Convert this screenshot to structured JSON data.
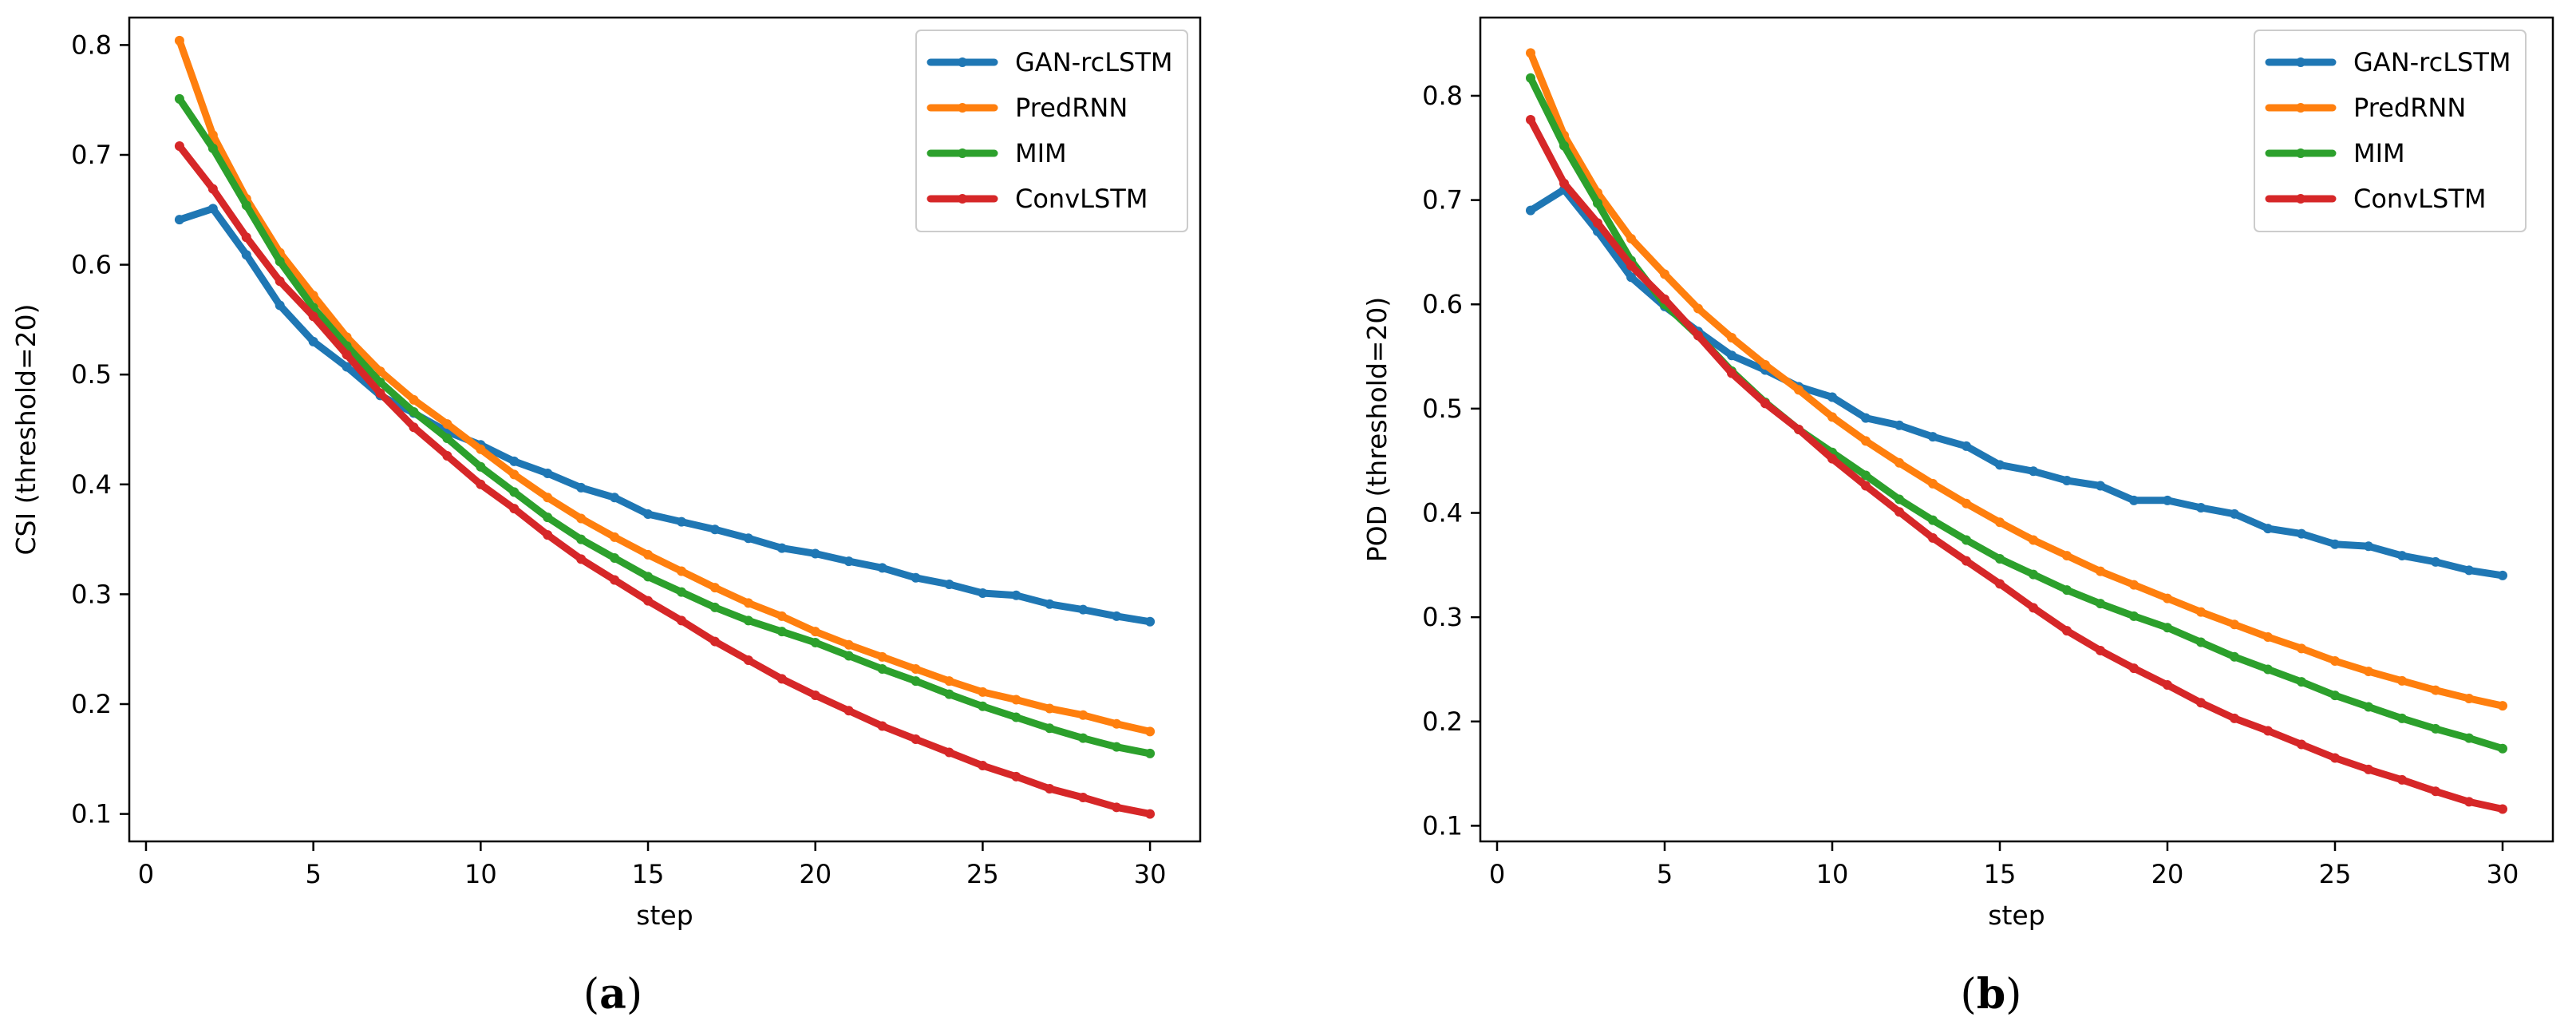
{
  "chart_data": [
    {
      "type": "line",
      "caption_label": "a",
      "xlabel": "step",
      "ylabel": "CSI (threshold=20)",
      "xlim": [
        -0.5,
        31.5
      ],
      "ylim": [
        0.075,
        0.825
      ],
      "xticks": [
        0,
        5,
        10,
        15,
        20,
        25,
        30
      ],
      "yticks": [
        0.1,
        0.2,
        0.3,
        0.4,
        0.5,
        0.6,
        0.7,
        0.8
      ],
      "legend_position": "top-right",
      "x": [
        1,
        2,
        3,
        4,
        5,
        6,
        7,
        8,
        9,
        10,
        11,
        12,
        13,
        14,
        15,
        16,
        17,
        18,
        19,
        20,
        21,
        22,
        23,
        24,
        25,
        26,
        27,
        28,
        29,
        30
      ],
      "series": [
        {
          "name": "GAN-rcLSTM",
          "color": "#1f77b4",
          "values": [
            0.641,
            0.651,
            0.609,
            0.563,
            0.53,
            0.507,
            0.481,
            0.465,
            0.448,
            0.436,
            0.421,
            0.41,
            0.397,
            0.388,
            0.373,
            0.366,
            0.359,
            0.351,
            0.342,
            0.337,
            0.33,
            0.324,
            0.315,
            0.309,
            0.301,
            0.299,
            0.291,
            0.286,
            0.28,
            0.275
          ]
        },
        {
          "name": "PredRNN",
          "color": "#ff7f0e",
          "values": [
            0.804,
            0.718,
            0.66,
            0.611,
            0.572,
            0.534,
            0.503,
            0.477,
            0.455,
            0.432,
            0.409,
            0.388,
            0.369,
            0.352,
            0.336,
            0.321,
            0.306,
            0.292,
            0.28,
            0.266,
            0.254,
            0.243,
            0.232,
            0.221,
            0.211,
            0.204,
            0.196,
            0.19,
            0.182,
            0.175
          ]
        },
        {
          "name": "MIM",
          "color": "#2ca02c",
          "values": [
            0.751,
            0.706,
            0.654,
            0.603,
            0.561,
            0.526,
            0.493,
            0.466,
            0.442,
            0.416,
            0.393,
            0.37,
            0.35,
            0.333,
            0.316,
            0.302,
            0.288,
            0.276,
            0.266,
            0.256,
            0.244,
            0.232,
            0.221,
            0.209,
            0.198,
            0.188,
            0.178,
            0.169,
            0.161,
            0.155
          ]
        },
        {
          "name": "ConvLSTM",
          "color": "#d62728",
          "values": [
            0.708,
            0.669,
            0.625,
            0.585,
            0.553,
            0.518,
            0.483,
            0.452,
            0.426,
            0.4,
            0.378,
            0.354,
            0.332,
            0.313,
            0.294,
            0.276,
            0.257,
            0.24,
            0.223,
            0.208,
            0.194,
            0.18,
            0.168,
            0.156,
            0.144,
            0.134,
            0.123,
            0.115,
            0.106,
            0.1
          ]
        }
      ]
    },
    {
      "type": "line",
      "caption_label": "b",
      "xlabel": "step",
      "ylabel": "POD (threshold=20)",
      "xlim": [
        -0.5,
        31.5
      ],
      "ylim": [
        0.085,
        0.875
      ],
      "xticks": [
        0,
        5,
        10,
        15,
        20,
        25,
        30
      ],
      "yticks": [
        0.1,
        0.2,
        0.3,
        0.4,
        0.5,
        0.6,
        0.7,
        0.8
      ],
      "legend_position": "top-right",
      "x": [
        1,
        2,
        3,
        4,
        5,
        6,
        7,
        8,
        9,
        10,
        11,
        12,
        13,
        14,
        15,
        16,
        17,
        18,
        19,
        20,
        21,
        22,
        23,
        24,
        25,
        26,
        27,
        28,
        29,
        30
      ],
      "series": [
        {
          "name": "GAN-rcLSTM",
          "color": "#1f77b4",
          "values": [
            0.69,
            0.71,
            0.67,
            0.626,
            0.598,
            0.574,
            0.551,
            0.537,
            0.521,
            0.511,
            0.491,
            0.484,
            0.473,
            0.464,
            0.446,
            0.44,
            0.431,
            0.426,
            0.412,
            0.412,
            0.405,
            0.399,
            0.385,
            0.38,
            0.37,
            0.368,
            0.359,
            0.353,
            0.345,
            0.34
          ]
        },
        {
          "name": "PredRNN",
          "color": "#ff7f0e",
          "values": [
            0.841,
            0.762,
            0.707,
            0.663,
            0.629,
            0.596,
            0.568,
            0.542,
            0.518,
            0.492,
            0.469,
            0.448,
            0.428,
            0.409,
            0.391,
            0.374,
            0.359,
            0.344,
            0.331,
            0.318,
            0.305,
            0.293,
            0.281,
            0.27,
            0.258,
            0.248,
            0.239,
            0.23,
            0.222,
            0.215
          ]
        },
        {
          "name": "MIM",
          "color": "#2ca02c",
          "values": [
            0.817,
            0.752,
            0.697,
            0.642,
            0.6,
            0.57,
            0.536,
            0.506,
            0.48,
            0.458,
            0.436,
            0.413,
            0.393,
            0.374,
            0.356,
            0.341,
            0.326,
            0.313,
            0.301,
            0.29,
            0.276,
            0.262,
            0.25,
            0.238,
            0.225,
            0.214,
            0.203,
            0.193,
            0.184,
            0.174
          ]
        },
        {
          "name": "ConvLSTM",
          "color": "#d62728",
          "values": [
            0.777,
            0.716,
            0.678,
            0.637,
            0.605,
            0.57,
            0.534,
            0.505,
            0.48,
            0.452,
            0.426,
            0.401,
            0.376,
            0.354,
            0.332,
            0.309,
            0.287,
            0.268,
            0.251,
            0.235,
            0.218,
            0.203,
            0.191,
            0.178,
            0.165,
            0.154,
            0.144,
            0.133,
            0.123,
            0.116
          ]
        }
      ]
    }
  ]
}
